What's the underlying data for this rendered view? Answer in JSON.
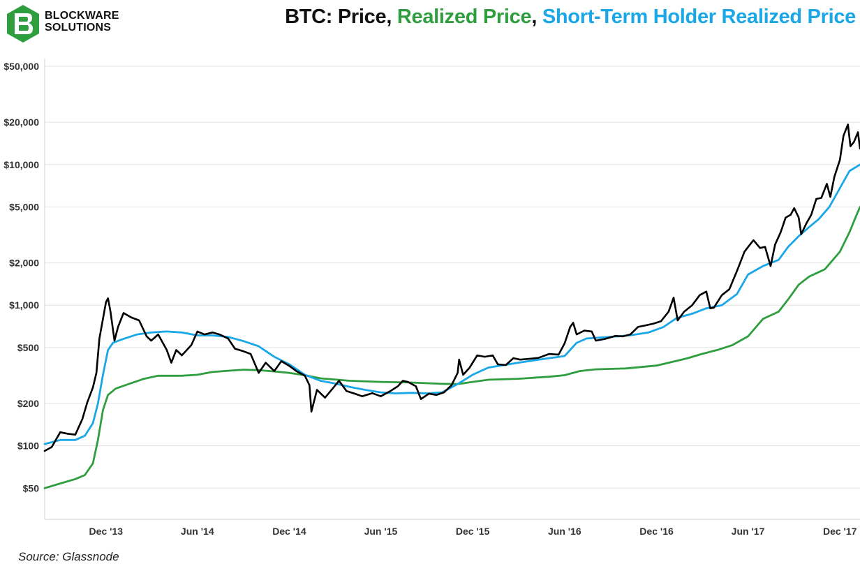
{
  "brand": {
    "name_line1": "BLOCKWARE",
    "name_line2": "SOLUTIONS",
    "logo_color": "#2f9e3f"
  },
  "title": {
    "part1": "BTC: Price",
    "sep1": ", ",
    "part2": "Realized Price",
    "sep2": ", ",
    "part3": "Short-Term Holder Realized Price"
  },
  "source": "Source: Glassnode",
  "chart_data": {
    "type": "line",
    "title": "BTC: Price, Realized Price, Short-Term Holder Realized Price",
    "xlabel": "",
    "ylabel": "",
    "y_scale": "log",
    "ylim": [
      30,
      50000
    ],
    "xlim": [
      "2013-08-01",
      "2018-01-10"
    ],
    "y_ticks": [
      50,
      100,
      200,
      500,
      1000,
      2000,
      5000,
      10000,
      20000,
      50000
    ],
    "y_tick_labels": [
      "$50",
      "$100",
      "$200",
      "$500",
      "$1,000",
      "$2,000",
      "$5,000",
      "$10,000",
      "$20,000",
      "$50,000"
    ],
    "x_tick_labels": [
      {
        "date": "2013-12-01",
        "label": "Dec '13"
      },
      {
        "date": "2014-06-01",
        "label": "Jun '14"
      },
      {
        "date": "2014-12-01",
        "label": "Dec '14"
      },
      {
        "date": "2015-06-01",
        "label": "Jun '15"
      },
      {
        "date": "2015-12-01",
        "label": "Dec '15"
      },
      {
        "date": "2016-06-01",
        "label": "Jun '16"
      },
      {
        "date": "2016-12-01",
        "label": "Dec '16"
      },
      {
        "date": "2017-06-01",
        "label": "Jun '17"
      },
      {
        "date": "2017-12-01",
        "label": "Dec '17"
      }
    ],
    "grid": true,
    "series": [
      {
        "name": "Price",
        "color": "#000000",
        "points": [
          [
            "2013-08-01",
            92
          ],
          [
            "2013-08-15",
            98
          ],
          [
            "2013-09-01",
            125
          ],
          [
            "2013-09-15",
            122
          ],
          [
            "2013-10-01",
            120
          ],
          [
            "2013-10-15",
            155
          ],
          [
            "2013-10-25",
            205
          ],
          [
            "2013-11-05",
            260
          ],
          [
            "2013-11-12",
            330
          ],
          [
            "2013-11-18",
            580
          ],
          [
            "2013-11-25",
            800
          ],
          [
            "2013-12-01",
            1050
          ],
          [
            "2013-12-05",
            1120
          ],
          [
            "2013-12-10",
            900
          ],
          [
            "2013-12-18",
            560
          ],
          [
            "2013-12-25",
            700
          ],
          [
            "2014-01-05",
            880
          ],
          [
            "2014-01-20",
            820
          ],
          [
            "2014-02-05",
            780
          ],
          [
            "2014-02-20",
            600
          ],
          [
            "2014-03-01",
            560
          ],
          [
            "2014-03-15",
            620
          ],
          [
            "2014-04-01",
            480
          ],
          [
            "2014-04-10",
            390
          ],
          [
            "2014-04-20",
            480
          ],
          [
            "2014-05-01",
            440
          ],
          [
            "2014-05-20",
            520
          ],
          [
            "2014-06-01",
            650
          ],
          [
            "2014-06-15",
            620
          ],
          [
            "2014-07-01",
            640
          ],
          [
            "2014-07-15",
            620
          ],
          [
            "2014-08-01",
            580
          ],
          [
            "2014-08-15",
            490
          ],
          [
            "2014-09-01",
            470
          ],
          [
            "2014-09-15",
            450
          ],
          [
            "2014-10-01",
            330
          ],
          [
            "2014-10-15",
            390
          ],
          [
            "2014-11-01",
            340
          ],
          [
            "2014-11-15",
            400
          ],
          [
            "2014-12-01",
            370
          ],
          [
            "2014-12-15",
            340
          ],
          [
            "2015-01-01",
            315
          ],
          [
            "2015-01-10",
            270
          ],
          [
            "2015-01-14",
            175
          ],
          [
            "2015-01-25",
            250
          ],
          [
            "2015-02-10",
            220
          ],
          [
            "2015-02-25",
            255
          ],
          [
            "2015-03-10",
            290
          ],
          [
            "2015-03-25",
            245
          ],
          [
            "2015-04-10",
            235
          ],
          [
            "2015-04-25",
            225
          ],
          [
            "2015-05-15",
            237
          ],
          [
            "2015-06-01",
            225
          ],
          [
            "2015-06-20",
            245
          ],
          [
            "2015-07-05",
            265
          ],
          [
            "2015-07-15",
            290
          ],
          [
            "2015-07-25",
            285
          ],
          [
            "2015-08-10",
            265
          ],
          [
            "2015-08-20",
            215
          ],
          [
            "2015-09-05",
            235
          ],
          [
            "2015-09-20",
            230
          ],
          [
            "2015-10-05",
            240
          ],
          [
            "2015-10-20",
            270
          ],
          [
            "2015-11-01",
            330
          ],
          [
            "2015-11-04",
            410
          ],
          [
            "2015-11-12",
            320
          ],
          [
            "2015-11-25",
            360
          ],
          [
            "2015-12-10",
            440
          ],
          [
            "2015-12-25",
            430
          ],
          [
            "2016-01-10",
            440
          ],
          [
            "2016-01-20",
            380
          ],
          [
            "2016-02-05",
            375
          ],
          [
            "2016-02-20",
            420
          ],
          [
            "2016-03-05",
            410
          ],
          [
            "2016-03-20",
            415
          ],
          [
            "2016-04-10",
            422
          ],
          [
            "2016-05-01",
            450
          ],
          [
            "2016-05-20",
            445
          ],
          [
            "2016-06-01",
            535
          ],
          [
            "2016-06-12",
            700
          ],
          [
            "2016-06-18",
            750
          ],
          [
            "2016-06-25",
            620
          ],
          [
            "2016-07-10",
            660
          ],
          [
            "2016-07-25",
            650
          ],
          [
            "2016-08-02",
            560
          ],
          [
            "2016-08-20",
            575
          ],
          [
            "2016-09-10",
            605
          ],
          [
            "2016-09-25",
            600
          ],
          [
            "2016-10-10",
            620
          ],
          [
            "2016-10-25",
            700
          ],
          [
            "2016-11-10",
            720
          ],
          [
            "2016-11-25",
            740
          ],
          [
            "2016-12-10",
            770
          ],
          [
            "2016-12-25",
            900
          ],
          [
            "2017-01-04",
            1130
          ],
          [
            "2017-01-12",
            780
          ],
          [
            "2017-01-25",
            900
          ],
          [
            "2017-02-10",
            1000
          ],
          [
            "2017-02-25",
            1180
          ],
          [
            "2017-03-10",
            1250
          ],
          [
            "2017-03-18",
            950
          ],
          [
            "2017-03-25",
            960
          ],
          [
            "2017-04-10",
            1180
          ],
          [
            "2017-04-25",
            1300
          ],
          [
            "2017-05-10",
            1750
          ],
          [
            "2017-05-25",
            2400
          ],
          [
            "2017-06-05",
            2700
          ],
          [
            "2017-06-12",
            2900
          ],
          [
            "2017-06-25",
            2550
          ],
          [
            "2017-07-05",
            2600
          ],
          [
            "2017-07-16",
            1900
          ],
          [
            "2017-07-25",
            2700
          ],
          [
            "2017-08-05",
            3300
          ],
          [
            "2017-08-15",
            4200
          ],
          [
            "2017-08-25",
            4400
          ],
          [
            "2017-09-01",
            4900
          ],
          [
            "2017-09-10",
            4200
          ],
          [
            "2017-09-15",
            3200
          ],
          [
            "2017-09-25",
            3800
          ],
          [
            "2017-10-05",
            4400
          ],
          [
            "2017-10-15",
            5700
          ],
          [
            "2017-10-25",
            5800
          ],
          [
            "2017-11-05",
            7300
          ],
          [
            "2017-11-12",
            5900
          ],
          [
            "2017-11-20",
            8200
          ],
          [
            "2017-12-01",
            10800
          ],
          [
            "2017-12-08",
            16000
          ],
          [
            "2017-12-17",
            19300
          ],
          [
            "2017-12-22",
            13500
          ],
          [
            "2017-12-29",
            14500
          ],
          [
            "2018-01-06",
            17000
          ],
          [
            "2018-01-10",
            13000
          ]
        ]
      },
      {
        "name": "Realized Price",
        "color": "#2f9e3f",
        "points": [
          [
            "2013-08-01",
            50
          ],
          [
            "2013-09-01",
            54
          ],
          [
            "2013-10-01",
            58
          ],
          [
            "2013-10-20",
            62
          ],
          [
            "2013-11-05",
            75
          ],
          [
            "2013-11-15",
            110
          ],
          [
            "2013-11-25",
            180
          ],
          [
            "2013-12-05",
            230
          ],
          [
            "2013-12-20",
            255
          ],
          [
            "2014-01-15",
            275
          ],
          [
            "2014-02-15",
            300
          ],
          [
            "2014-03-15",
            315
          ],
          [
            "2014-05-01",
            315
          ],
          [
            "2014-06-01",
            320
          ],
          [
            "2014-07-01",
            335
          ],
          [
            "2014-08-01",
            342
          ],
          [
            "2014-09-01",
            348
          ],
          [
            "2014-10-01",
            345
          ],
          [
            "2014-11-01",
            338
          ],
          [
            "2014-12-01",
            330
          ],
          [
            "2015-01-01",
            318
          ],
          [
            "2015-02-01",
            302
          ],
          [
            "2015-04-01",
            290
          ],
          [
            "2015-06-01",
            285
          ],
          [
            "2015-08-01",
            282
          ],
          [
            "2015-10-01",
            276
          ],
          [
            "2015-11-01",
            275
          ],
          [
            "2015-12-01",
            285
          ],
          [
            "2016-01-01",
            295
          ],
          [
            "2016-03-01",
            300
          ],
          [
            "2016-05-01",
            310
          ],
          [
            "2016-06-01",
            318
          ],
          [
            "2016-07-01",
            340
          ],
          [
            "2016-08-01",
            350
          ],
          [
            "2016-10-01",
            355
          ],
          [
            "2016-12-01",
            372
          ],
          [
            "2017-01-01",
            395
          ],
          [
            "2017-02-01",
            420
          ],
          [
            "2017-03-01",
            450
          ],
          [
            "2017-04-01",
            480
          ],
          [
            "2017-05-01",
            520
          ],
          [
            "2017-06-01",
            600
          ],
          [
            "2017-06-20",
            720
          ],
          [
            "2017-07-01",
            800
          ],
          [
            "2017-08-01",
            900
          ],
          [
            "2017-08-20",
            1100
          ],
          [
            "2017-09-10",
            1400
          ],
          [
            "2017-10-01",
            1600
          ],
          [
            "2017-11-01",
            1800
          ],
          [
            "2017-12-01",
            2400
          ],
          [
            "2017-12-20",
            3300
          ],
          [
            "2018-01-01",
            4200
          ],
          [
            "2018-01-10",
            5000
          ]
        ]
      },
      {
        "name": "Short-Term Holder Realized Price",
        "color": "#1aa7e8",
        "points": [
          [
            "2013-08-01",
            103
          ],
          [
            "2013-09-01",
            110
          ],
          [
            "2013-10-01",
            110
          ],
          [
            "2013-10-20",
            118
          ],
          [
            "2013-11-05",
            145
          ],
          [
            "2013-11-15",
            200
          ],
          [
            "2013-11-25",
            320
          ],
          [
            "2013-12-05",
            480
          ],
          [
            "2013-12-15",
            540
          ],
          [
            "2014-01-01",
            570
          ],
          [
            "2014-02-01",
            620
          ],
          [
            "2014-03-01",
            640
          ],
          [
            "2014-04-01",
            650
          ],
          [
            "2014-05-01",
            640
          ],
          [
            "2014-06-01",
            610
          ],
          [
            "2014-07-01",
            610
          ],
          [
            "2014-08-01",
            595
          ],
          [
            "2014-09-01",
            555
          ],
          [
            "2014-10-01",
            510
          ],
          [
            "2014-11-01",
            430
          ],
          [
            "2014-12-01",
            380
          ],
          [
            "2015-01-01",
            320
          ],
          [
            "2015-02-01",
            290
          ],
          [
            "2015-03-01",
            278
          ],
          [
            "2015-04-01",
            262
          ],
          [
            "2015-05-01",
            250
          ],
          [
            "2015-06-01",
            240
          ],
          [
            "2015-07-01",
            236
          ],
          [
            "2015-08-01",
            238
          ],
          [
            "2015-09-01",
            236
          ],
          [
            "2015-10-01",
            240
          ],
          [
            "2015-11-01",
            275
          ],
          [
            "2015-12-01",
            320
          ],
          [
            "2016-01-01",
            360
          ],
          [
            "2016-02-01",
            375
          ],
          [
            "2016-03-01",
            390
          ],
          [
            "2016-04-01",
            405
          ],
          [
            "2016-05-01",
            420
          ],
          [
            "2016-06-01",
            435
          ],
          [
            "2016-06-25",
            540
          ],
          [
            "2016-07-15",
            580
          ],
          [
            "2016-08-15",
            590
          ],
          [
            "2016-09-15",
            600
          ],
          [
            "2016-10-15",
            615
          ],
          [
            "2016-11-15",
            640
          ],
          [
            "2016-12-15",
            700
          ],
          [
            "2017-01-10",
            810
          ],
          [
            "2017-02-10",
            870
          ],
          [
            "2017-03-10",
            950
          ],
          [
            "2017-04-10",
            1000
          ],
          [
            "2017-05-10",
            1200
          ],
          [
            "2017-06-01",
            1650
          ],
          [
            "2017-07-01",
            1900
          ],
          [
            "2017-08-01",
            2100
          ],
          [
            "2017-08-20",
            2600
          ],
          [
            "2017-09-10",
            3100
          ],
          [
            "2017-10-01",
            3600
          ],
          [
            "2017-10-20",
            4100
          ],
          [
            "2017-11-10",
            5000
          ],
          [
            "2017-12-01",
            6800
          ],
          [
            "2017-12-20",
            9000
          ],
          [
            "2018-01-10",
            10000
          ]
        ]
      }
    ]
  }
}
